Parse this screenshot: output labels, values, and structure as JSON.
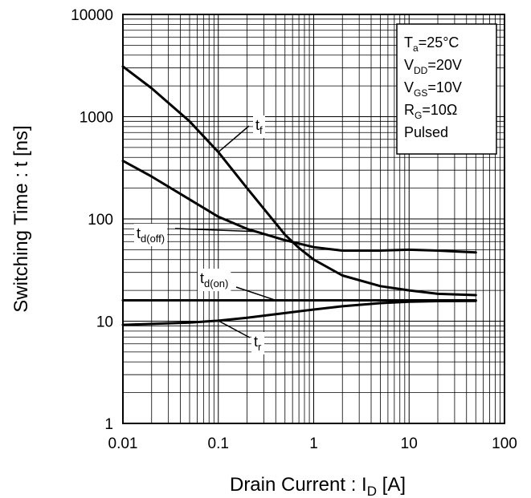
{
  "chart_data": {
    "type": "line",
    "title": "",
    "xlabel": {
      "main": "Drain Current : I",
      "sub": "D",
      "tail": " [A]"
    },
    "ylabel": "Switching Time : t [ns]",
    "xscale": "log",
    "yscale": "log",
    "xlim": [
      0.01,
      100
    ],
    "ylim": [
      1,
      10000
    ],
    "grid": true,
    "x_ticks": [
      "0.01",
      "0.1",
      "1",
      "10",
      "100"
    ],
    "y_ticks": [
      "1",
      "10",
      "100",
      "1000",
      "10000"
    ],
    "conditions": [
      {
        "main": "T",
        "sub": "a",
        "tail": "=25°C"
      },
      {
        "main": "V",
        "sub": "DD",
        "tail": "=20V"
      },
      {
        "main": "V",
        "sub": "GS",
        "tail": "=10V"
      },
      {
        "main": "R",
        "sub": "G",
        "tail": "=10Ω"
      },
      {
        "main": "Pulsed",
        "sub": "",
        "tail": ""
      }
    ],
    "series": [
      {
        "name": "tf",
        "label_main": "t",
        "label_sub": "f",
        "x": [
          0.01,
          0.02,
          0.05,
          0.1,
          0.2,
          0.5,
          0.7,
          1,
          2,
          5,
          10,
          20,
          50
        ],
        "y": [
          3100,
          1900,
          900,
          450,
          200,
          70,
          52,
          40,
          28,
          22,
          20,
          18.5,
          18
        ]
      },
      {
        "name": "td(off)",
        "label_main": "t",
        "label_sub": "d(off)",
        "x": [
          0.01,
          0.02,
          0.05,
          0.1,
          0.2,
          0.5,
          1,
          2,
          5,
          10,
          20,
          50
        ],
        "y": [
          370,
          260,
          155,
          105,
          80,
          62,
          53,
          49,
          49,
          50,
          49,
          47
        ]
      },
      {
        "name": "td(on)",
        "label_main": "t",
        "label_sub": "d(on)",
        "x": [
          0.01,
          0.1,
          1,
          10,
          50
        ],
        "y": [
          16,
          16,
          16,
          16,
          16
        ]
      },
      {
        "name": "tr",
        "label_main": "t",
        "label_sub": "r",
        "x": [
          0.01,
          0.02,
          0.05,
          0.1,
          0.2,
          0.5,
          1,
          2,
          5,
          10,
          20,
          50
        ],
        "y": [
          9.2,
          9.4,
          9.7,
          10.1,
          10.8,
          12,
          13,
          14,
          15,
          15.5,
          15.7,
          15.8
        ]
      }
    ]
  }
}
